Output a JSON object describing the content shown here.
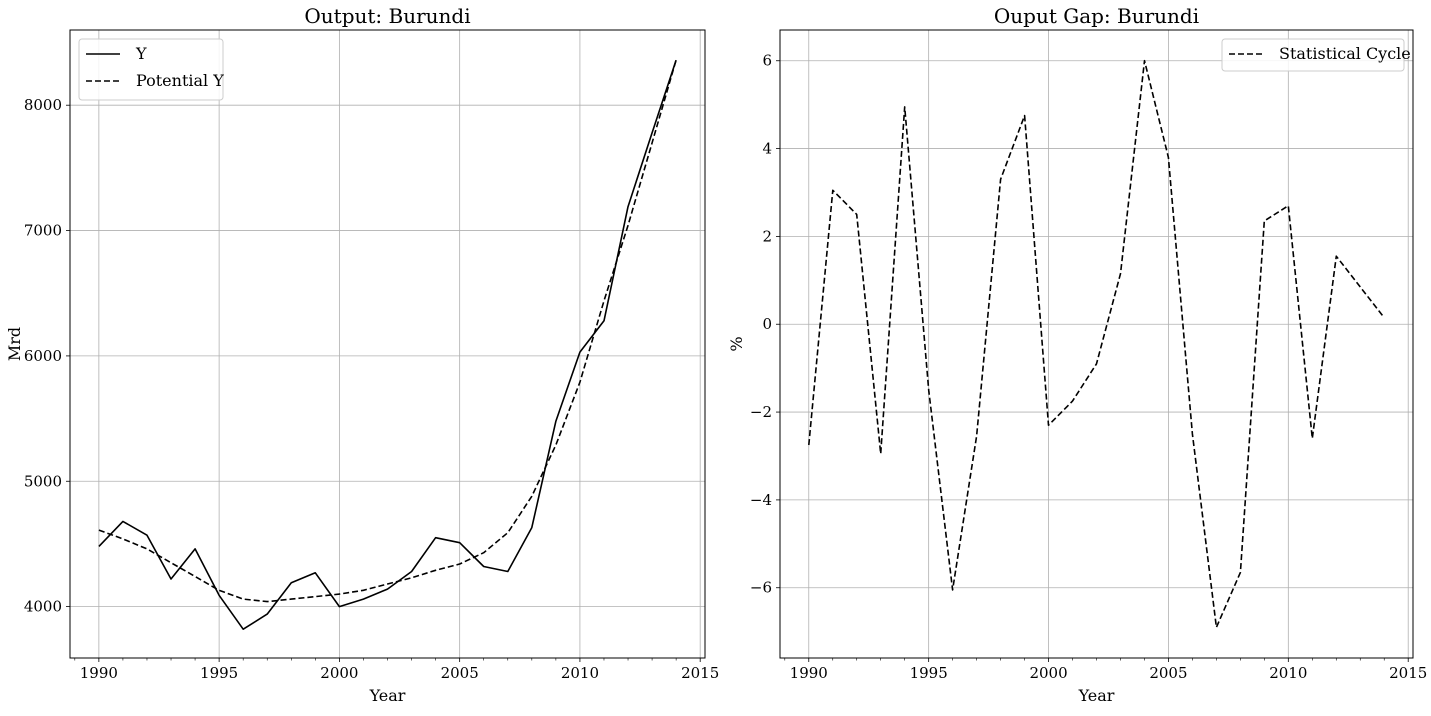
{
  "chart_data": [
    {
      "type": "line",
      "title": "Output: Burundi",
      "xlabel": "Year",
      "ylabel": "Mrd",
      "xlim": [
        1988.8,
        2015.2
      ],
      "ylim": [
        3590,
        8600
      ],
      "xticks": [
        1990,
        1995,
        2000,
        2005,
        2010,
        2015
      ],
      "yticks": [
        4000,
        5000,
        6000,
        7000,
        8000
      ],
      "grid": true,
      "legend_position": "top-left",
      "x": [
        1990,
        1991,
        1992,
        1993,
        1994,
        1995,
        1996,
        1997,
        1998,
        1999,
        2000,
        2001,
        2002,
        2003,
        2004,
        2005,
        2006,
        2007,
        2008,
        2009,
        2010,
        2011,
        2012,
        2013,
        2014
      ],
      "series": [
        {
          "name": "Y",
          "style": "solid",
          "values": [
            4480,
            4680,
            4570,
            4220,
            4460,
            4090,
            3820,
            3940,
            4190,
            4270,
            4000,
            4060,
            4140,
            4280,
            4550,
            4510,
            4320,
            4280,
            4630,
            5480,
            6030,
            6280,
            7190,
            7780,
            8360
          ]
        },
        {
          "name": "Potential Y",
          "style": "dashed",
          "values": [
            4610,
            4540,
            4460,
            4350,
            4240,
            4130,
            4060,
            4040,
            4060,
            4080,
            4100,
            4130,
            4180,
            4230,
            4290,
            4340,
            4430,
            4590,
            4880,
            5290,
            5790,
            6440,
            7040,
            7700,
            8360
          ]
        }
      ]
    },
    {
      "type": "line",
      "title": "Ouput Gap: Burundi",
      "xlabel": "Year",
      "ylabel": "%",
      "xlim": [
        1988.8,
        2015.2
      ],
      "ylim": [
        -7.6,
        6.7
      ],
      "xticks": [
        1990,
        1995,
        2000,
        2005,
        2010,
        2015
      ],
      "yticks": [
        -6,
        -4,
        -2,
        0,
        2,
        4,
        6
      ],
      "grid": true,
      "legend_position": "top-right",
      "x": [
        1990,
        1991,
        1992,
        1993,
        1994,
        1995,
        1996,
        1997,
        1998,
        1999,
        2000,
        2001,
        2002,
        2003,
        2004,
        2005,
        2006,
        2007,
        2008,
        2009,
        2010,
        2011,
        2012,
        2013,
        2014
      ],
      "series": [
        {
          "name": "Statistical Cycle",
          "style": "dashed",
          "values": [
            -2.75,
            3.05,
            2.5,
            -2.95,
            4.95,
            -1.5,
            -6.05,
            -2.55,
            3.3,
            4.75,
            -2.3,
            -1.75,
            -0.9,
            1.15,
            6.0,
            3.8,
            -2.5,
            -6.9,
            -5.65,
            2.35,
            2.7,
            -2.6,
            1.55,
            0.85,
            0.15
          ]
        }
      ]
    }
  ]
}
